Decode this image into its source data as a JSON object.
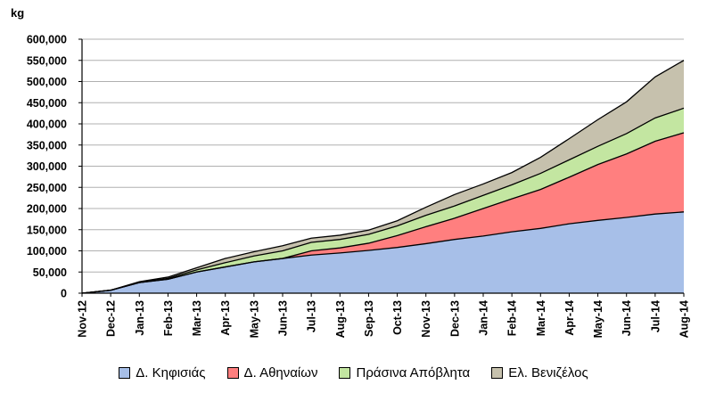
{
  "chart_data": {
    "type": "area",
    "stacked": true,
    "ylabel": "kg",
    "xlabel": "",
    "ylim": [
      0,
      600000
    ],
    "ytick_step": 50000,
    "ytick_labels": [
      "0",
      "50,000",
      "100,000",
      "150,000",
      "200,000",
      "250,000",
      "300,000",
      "350,000",
      "400,000",
      "450,000",
      "500,000",
      "550,000",
      "600,000"
    ],
    "grid": true,
    "legend_position": "bottom",
    "categories": [
      "Nov-12",
      "Dec-12",
      "Jan-13",
      "Feb-13",
      "Mar-13",
      "Apr-13",
      "May-13",
      "Jun-13",
      "Jul-13",
      "Aug-13",
      "Sep-13",
      "Oct-13",
      "Nov-13",
      "Dec-13",
      "Jan-14",
      "Feb-14",
      "Mar-14",
      "Apr-14",
      "May-14",
      "Jun-14",
      "Jul-14",
      "Aug-14"
    ],
    "series": [
      {
        "name": "Δ. Κηφισιάς",
        "color": "#a7bfe8",
        "values": [
          0,
          7000,
          25000,
          33000,
          50000,
          62000,
          74000,
          82000,
          90000,
          95000,
          101000,
          108000,
          117000,
          127000,
          135000,
          145000,
          153000,
          164000,
          172000,
          179000,
          187000,
          192000
        ]
      },
      {
        "name": "Δ. Αθηναίων",
        "color": "#ff7f7f",
        "values": [
          0,
          0,
          0,
          0,
          0,
          0,
          0,
          0,
          10000,
          12000,
          17000,
          28000,
          40000,
          50000,
          65000,
          78000,
          92000,
          110000,
          132000,
          150000,
          172000,
          187000
        ]
      },
      {
        "name": "Πράσινα Απόβλητα",
        "color": "#c3e6a1",
        "values": [
          0,
          0,
          0,
          2000,
          5000,
          10000,
          14000,
          18000,
          20000,
          20000,
          21000,
          23000,
          27000,
          29000,
          31000,
          33000,
          38000,
          41000,
          43000,
          48000,
          55000,
          58000
        ]
      },
      {
        "name": "Ελ. Βενιζέλος",
        "color": "#c6c1ad",
        "values": [
          0,
          0,
          2000,
          3000,
          5000,
          10000,
          10000,
          12000,
          10000,
          10000,
          10000,
          12000,
          19000,
          27000,
          27000,
          29000,
          38000,
          50000,
          63000,
          75000,
          97000,
          113000
        ]
      }
    ]
  }
}
